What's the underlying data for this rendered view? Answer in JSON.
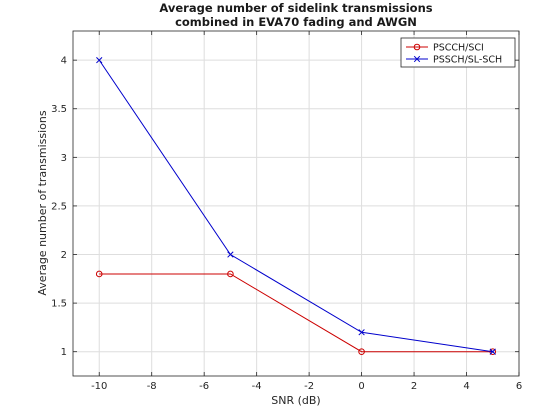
{
  "chart_data": {
    "type": "line",
    "title": [
      "Average number of sidelink transmissions",
      "combined in EVA70 fading and AWGN"
    ],
    "xlabel": "SNR (dB)",
    "ylabel": "Average number of transmissions",
    "xlim": [
      -11,
      6
    ],
    "ylim": [
      0.75,
      4.3
    ],
    "xticks": [
      -10,
      -8,
      -6,
      -4,
      -2,
      0,
      2,
      4,
      6
    ],
    "yticks": [
      1,
      1.5,
      2,
      2.5,
      3,
      3.5,
      4
    ],
    "xtick_labels": [
      "-10",
      "-8",
      "-6",
      "-4",
      "-2",
      "0",
      "2",
      "4",
      "6"
    ],
    "ytick_labels": [
      "1",
      "1.5",
      "2",
      "2.5",
      "3",
      "3.5",
      "4"
    ],
    "grid": true,
    "legend_position": "top-right",
    "series": [
      {
        "name": "PSCCH/SCI",
        "color": "#cc0000",
        "marker": "circle",
        "x": [
          -10,
          -5,
          0,
          5
        ],
        "y": [
          1.8,
          1.8,
          1.0,
          1.0
        ]
      },
      {
        "name": "PSSCH/SL-SCH",
        "color": "#0000cc",
        "marker": "x",
        "x": [
          -10,
          -5,
          0,
          5
        ],
        "y": [
          4.0,
          2.0,
          1.2,
          1.0
        ]
      }
    ]
  }
}
